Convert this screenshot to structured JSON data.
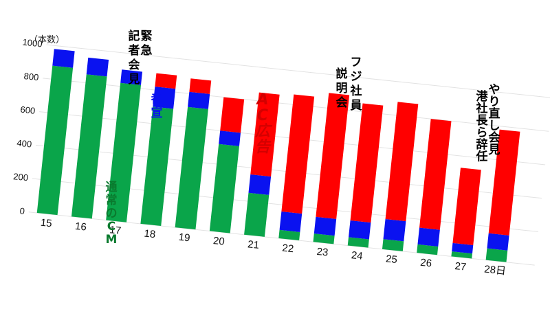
{
  "chart_data": {
    "type": "bar",
    "stacked": true,
    "ylabel": "（本数）",
    "ylim": [
      0,
      1000
    ],
    "yticks": [
      "0",
      "200",
      "400",
      "600",
      "800",
      "1000"
    ],
    "grid": true,
    "categories": [
      "15",
      "16",
      "17",
      "18",
      "19",
      "20",
      "21",
      "22",
      "23",
      "24",
      "25",
      "26",
      "27",
      "28日"
    ],
    "series": [
      {
        "key": "regular",
        "color": "#0aa54a",
        "values": [
          880,
          850,
          820,
          700,
          720,
          520,
          250,
          50,
          50,
          50,
          60,
          50,
          30,
          70
        ]
      },
      {
        "key": "bangsen",
        "color": "#0a12f0",
        "values": [
          100,
          100,
          80,
          120,
          90,
          80,
          110,
          110,
          100,
          100,
          120,
          100,
          50,
          90
        ]
      },
      {
        "key": "ac",
        "color": "#ff0000",
        "values": [
          0,
          0,
          0,
          80,
          80,
          200,
          490,
          700,
          740,
          700,
          700,
          650,
          450,
          620
        ]
      }
    ],
    "annotations": [
      {
        "key": "kinkyu",
        "lines": [
          "緊急",
          "記者会見"
        ],
        "color": "#000000"
      },
      {
        "key": "bangsen",
        "lines": [
          "番宣"
        ],
        "color": "#0a12f0"
      },
      {
        "key": "regular",
        "lines": [
          "通常のCM"
        ],
        "color": "#0a7a2e"
      },
      {
        "key": "ac",
        "lines": [
          "AC広告"
        ],
        "color": "#d40000"
      },
      {
        "key": "setsumei",
        "lines": [
          "フジ社員",
          "説明会"
        ],
        "color": "#000000"
      },
      {
        "key": "yarinaoshi",
        "lines": [
          "やり直し会見",
          "港社長ら辞任"
        ],
        "color": "#000000"
      }
    ]
  }
}
